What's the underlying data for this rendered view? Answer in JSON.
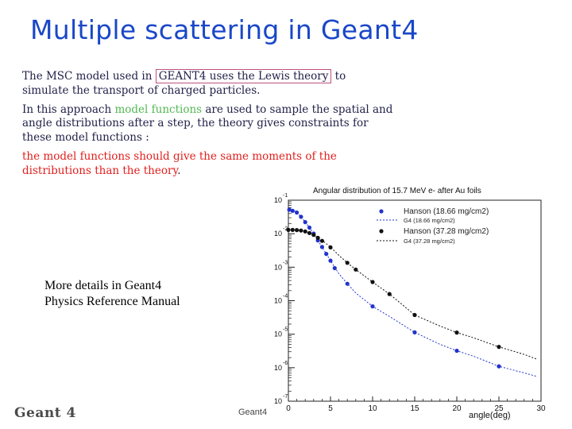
{
  "slide": {
    "title": "Multiple scattering in Geant4",
    "para1": {
      "before": "The MSC model used in ",
      "boxed": "GEANT4 uses the Lewis theory",
      "after": " to simulate the transport of charged particles."
    },
    "para2": {
      "before": "In this approach ",
      "green": "model functions",
      "after": " are used to sample the spatial and angle distributions after a step, the theory gives constraints for these model functions :"
    },
    "para3": "the model functions should give the same moments of the distributions than the theory",
    "para3_end": ".",
    "details_line1": "More details in Geant4",
    "details_line2": "Physics Reference Manual",
    "logo": "Geant 4",
    "footer": "Geant4"
  },
  "chart_data": {
    "type": "line",
    "title": "Angular distribution of 15.7 MeV e- after Au foils",
    "xlabel": "angle(deg)",
    "ylabel": "",
    "xlim": [
      0,
      30
    ],
    "ylim_log10": [
      -7,
      -1
    ],
    "y_scale": "log",
    "xticks": [
      "0",
      "5",
      "10",
      "15",
      "20",
      "25",
      "30"
    ],
    "yticks": [
      {
        "base": "10",
        "exp": "-1"
      },
      {
        "base": "10",
        "exp": "-2"
      },
      {
        "base": "10",
        "exp": "-3"
      },
      {
        "base": "10",
        "exp": "-4"
      },
      {
        "base": "10",
        "exp": "-5"
      },
      {
        "base": "10",
        "exp": "-6"
      },
      {
        "base": "10",
        "exp": "-7"
      }
    ],
    "legend_position": "top-right",
    "series": [
      {
        "name": "Hanson (18.66 mg/cm2)",
        "kind": "markers",
        "color": "#2233cc",
        "x": [
          0.1,
          0.5,
          1.0,
          1.5,
          2.0,
          2.5,
          3.0,
          3.5,
          4.0,
          4.5,
          5.0,
          5.5,
          7.0,
          10.0,
          15.0,
          20.0,
          25.0
        ],
        "y": [
          0.052,
          0.048,
          0.043,
          0.032,
          0.0222,
          0.0152,
          0.0101,
          0.0063,
          0.004,
          0.0025,
          0.00157,
          0.00094,
          0.00032,
          6.8e-05,
          1.13e-05,
          3.2e-06,
          1.1e-06
        ]
      },
      {
        "name": "G4 (18.66 mg/cm2)",
        "kind": "dashed",
        "color": "#2233cc",
        "x": [
          0,
          1,
          2,
          3,
          4,
          5,
          6,
          7,
          8,
          10,
          12,
          15,
          18,
          20,
          22,
          25,
          28,
          29.5
        ],
        "y": [
          0.058,
          0.044,
          0.0225,
          0.0101,
          0.004,
          0.00157,
          0.00064,
          0.00032,
          0.00017,
          6.8e-05,
          3.4e-05,
          1.13e-05,
          5e-06,
          3.2e-06,
          2.2e-06,
          1.1e-06,
          7e-07,
          5.5e-07
        ]
      },
      {
        "name": "Hanson (37.28 mg/cm2)",
        "kind": "markers",
        "color": "#111111",
        "x": [
          0.0,
          0.5,
          1.0,
          1.5,
          2.0,
          2.5,
          3.0,
          3.5,
          4.0,
          5.0,
          7.0,
          8.0,
          10.0,
          12.0,
          15.0,
          20.0,
          25.0
        ],
        "y": [
          0.013,
          0.013,
          0.0128,
          0.0124,
          0.0117,
          0.0105,
          0.0092,
          0.0075,
          0.0061,
          0.0039,
          0.00135,
          0.00085,
          0.00036,
          0.000158,
          3.75e-05,
          1.12e-05,
          4.2e-06
        ]
      },
      {
        "name": "G4 (37.28 mg/cm2)",
        "kind": "dashed",
        "color": "#111111",
        "x": [
          0,
          1,
          2,
          3,
          4,
          5,
          6,
          7,
          8,
          10,
          12,
          15,
          18,
          20,
          22,
          25,
          28,
          29.5
        ],
        "y": [
          0.0135,
          0.0128,
          0.0115,
          0.0092,
          0.0063,
          0.004,
          0.00225,
          0.00135,
          0.00085,
          0.00036,
          0.000158,
          3.75e-05,
          1.75e-05,
          1.12e-05,
          7.8e-06,
          4.2e-06,
          2.5e-06,
          1.8e-06
        ]
      }
    ]
  }
}
